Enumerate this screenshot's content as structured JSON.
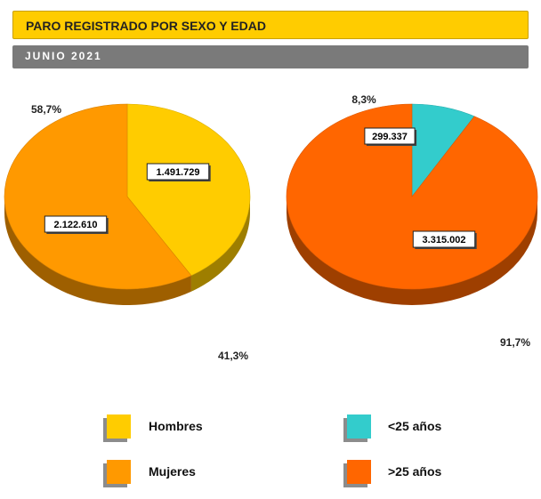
{
  "header": {
    "title": "PARO REGISTRADO POR SEXO Y EDAD",
    "subtitle": "JUNIO 2021"
  },
  "chart_data": [
    {
      "type": "pie",
      "title": "",
      "slices": [
        {
          "label": "Hombres",
          "value": 1491729,
          "value_label": "1.491.729",
          "percent_label": "41,3%",
          "color": "#ffcc00"
        },
        {
          "label": "Mujeres",
          "value": 2122610,
          "value_label": "2.122.610",
          "percent_label": "58,7%",
          "color": "#ff9900"
        }
      ],
      "style": "3d"
    },
    {
      "type": "pie",
      "title": "",
      "slices": [
        {
          "label": "<25 años",
          "value": 299337,
          "value_label": "299.337",
          "percent_label": "8,3%",
          "color": "#33cccc"
        },
        {
          "label": ">25 años",
          "value": 3315002,
          "value_label": "3.315.002",
          "percent_label": "91,7%",
          "color": "#ff6600"
        }
      ],
      "style": "3d"
    }
  ],
  "legend": [
    {
      "label": "Hombres",
      "color": "#ffcc00"
    },
    {
      "label": "<25 años",
      "color": "#33cccc"
    },
    {
      "label": "Mujeres",
      "color": "#ff9900"
    },
    {
      "label": ">25 años",
      "color": "#ff6600"
    }
  ]
}
